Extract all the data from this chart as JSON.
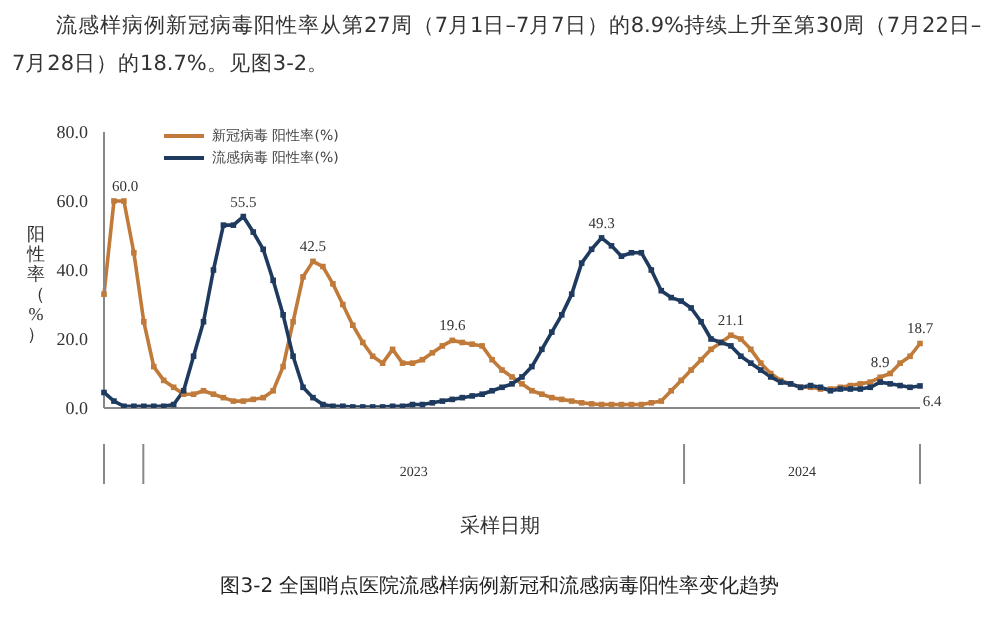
{
  "chart_data": {
    "type": "line",
    "title": "图3-2 全国哨点医院流感样病例新冠和流感病毒阳性率变化趋势",
    "xlabel": "采样日期",
    "ylabel": "阳性率（%）",
    "annotations": [
      "流感样病例新冠病毒阳性率从第27周（7月1日–7月7日）的8.9%持续上升至第30周（7月22日–7月28日）的18.7%。见图3-2。",
      "2023",
      "2024"
    ],
    "categories": [
      null,
      null,
      null,
      null,
      null,
      null,
      null,
      null,
      null,
      null,
      null,
      null,
      null,
      null,
      null,
      null,
      null,
      null,
      null,
      null,
      null,
      null,
      null,
      null,
      null,
      null,
      null,
      null,
      null,
      null,
      null,
      null,
      null,
      null,
      null,
      null,
      null,
      null,
      null,
      null,
      null,
      null,
      null,
      null,
      null,
      null,
      null,
      null,
      null,
      null,
      null,
      null,
      null,
      null,
      null,
      null,
      null,
      null,
      null,
      null,
      null,
      null,
      null,
      null,
      null,
      null,
      null,
      null,
      null,
      null,
      null,
      null,
      null,
      null,
      null,
      null,
      null,
      null,
      null,
      null,
      null,
      null,
      null
    ],
    "series": [
      {
        "name": "新冠病毒 阳性率(%)",
        "color": "#c07a3a",
        "values": [
          33,
          60,
          60,
          45,
          25,
          12,
          8,
          6,
          4,
          4,
          5,
          4,
          3,
          2,
          2,
          2.5,
          3,
          5,
          12,
          25,
          38,
          42.5,
          41,
          36,
          30,
          24,
          19,
          15,
          13,
          17,
          13,
          13,
          14,
          16,
          18,
          19.6,
          19,
          18.5,
          18,
          14,
          11,
          9,
          7,
          5,
          4,
          3,
          2.5,
          2,
          1.5,
          1.2,
          1,
          1,
          1,
          1,
          1,
          1.5,
          2,
          5,
          8,
          11,
          14,
          17,
          19,
          21.1,
          20,
          17,
          13,
          10,
          8,
          7,
          6,
          6,
          5.5,
          5.5,
          6,
          6.5,
          7,
          7.5,
          8.9,
          10,
          13,
          15,
          18.7
        ],
        "value_labels": [
          null,
          "60.0",
          null,
          null,
          null,
          null,
          null,
          null,
          null,
          null,
          null,
          null,
          null,
          null,
          null,
          null,
          null,
          null,
          null,
          null,
          null,
          "42.5",
          null,
          null,
          null,
          null,
          null,
          null,
          null,
          null,
          null,
          null,
          null,
          null,
          null,
          "19.6",
          null,
          null,
          null,
          null,
          null,
          null,
          null,
          null,
          null,
          null,
          null,
          null,
          null,
          null,
          null,
          null,
          null,
          null,
          null,
          null,
          null,
          null,
          null,
          null,
          null,
          null,
          null,
          "21.1",
          null,
          null,
          null,
          null,
          null,
          null,
          null,
          null,
          null,
          null,
          null,
          null,
          null,
          null,
          "8.9",
          null,
          null,
          null,
          "18.7"
        ]
      },
      {
        "name": "流感病毒 阳性率(%)",
        "color": "#1f3a5f",
        "values": [
          4.5,
          2,
          0.5,
          0.5,
          0.5,
          0.5,
          0.5,
          1,
          5,
          15,
          25,
          40,
          53,
          53,
          55.5,
          51,
          46,
          37,
          27,
          15,
          6,
          3,
          1,
          0.5,
          0.5,
          0.3,
          0.3,
          0.3,
          0.3,
          0.5,
          0.5,
          1,
          1,
          1.5,
          2,
          2.5,
          3,
          3.5,
          4,
          5,
          6,
          7,
          9,
          12,
          17,
          22,
          27,
          33,
          42,
          46,
          49.3,
          47,
          44,
          45,
          45,
          40,
          34,
          32,
          31,
          29,
          25,
          20,
          19,
          18,
          15,
          13,
          11,
          9,
          7.5,
          7,
          6,
          6.5,
          6,
          5,
          5.5,
          5.5,
          5.5,
          6,
          7.5,
          7,
          6.5,
          6,
          6.4
        ],
        "value_labels": [
          null,
          null,
          null,
          null,
          null,
          null,
          null,
          null,
          null,
          null,
          null,
          null,
          null,
          null,
          "55.5",
          null,
          null,
          null,
          null,
          null,
          null,
          null,
          null,
          null,
          null,
          null,
          null,
          null,
          null,
          null,
          null,
          null,
          null,
          null,
          null,
          null,
          null,
          null,
          null,
          null,
          null,
          null,
          null,
          null,
          null,
          null,
          null,
          null,
          null,
          null,
          "49.3",
          null,
          null,
          null,
          null,
          null,
          null,
          null,
          null,
          null,
          null,
          null,
          null,
          null,
          null,
          null,
          null,
          null,
          null,
          null,
          null,
          null,
          null,
          null,
          null,
          null,
          null,
          null,
          null,
          null,
          null,
          null,
          "6.4"
        ]
      }
    ],
    "ylim": [
      0,
      80
    ],
    "yticks": [
      {
        "value": 0,
        "label": "0.0"
      },
      {
        "value": 20,
        "label": "20.0"
      },
      {
        "value": 40,
        "label": "40.0"
      },
      {
        "value": 60,
        "label": "60.0"
      },
      {
        "value": 80,
        "label": "80.0"
      }
    ],
    "grid": false,
    "legend": "top left",
    "marker": "square",
    "line_style": "solid",
    "tick_labels": "y"
  }
}
